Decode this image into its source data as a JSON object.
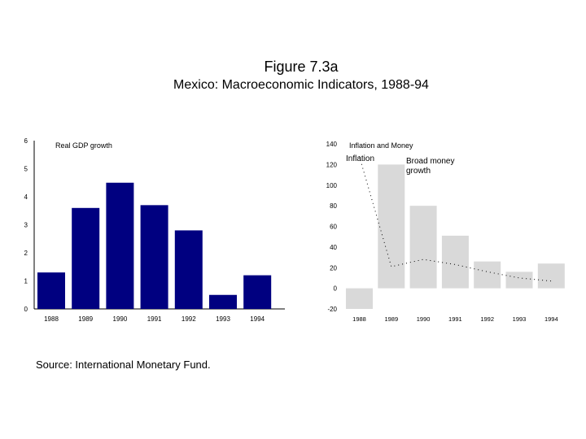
{
  "figure": {
    "title": "Figure 7.3a",
    "subtitle": "Mexico: Macroeconomic Indicators, 1988-94",
    "source": "Source: International Monetary Fund."
  },
  "colors": {
    "gdp_bar": "#000080",
    "money_bar": "#d9d9d9",
    "axis": "#000000"
  },
  "chart_data": [
    {
      "type": "bar",
      "title": "Real GDP growth",
      "categories": [
        "1988",
        "1989",
        "1990",
        "1991",
        "1992",
        "1993",
        "1994"
      ],
      "values": [
        1.3,
        3.6,
        4.5,
        3.7,
        2.8,
        0.5,
        1.2
      ],
      "ylim": [
        0,
        6
      ],
      "yticks": [
        "0",
        "1",
        "2",
        "3",
        "4",
        "5",
        "6"
      ]
    },
    {
      "type": "bar",
      "title": "Inflation and Money",
      "categories": [
        "1988",
        "1989",
        "1990",
        "1991",
        "1992",
        "1993",
        "1994"
      ],
      "ylim": [
        -20,
        140
      ],
      "yticks": [
        "-20",
        "0",
        "20",
        "40",
        "60",
        "80",
        "100",
        "120",
        "140"
      ],
      "series": [
        {
          "name": "Broad money growth",
          "kind": "bar",
          "values": [
            -20,
            120,
            80,
            51,
            26,
            16,
            24
          ]
        },
        {
          "name": "Inflation",
          "kind": "dotted-line",
          "values": [
            128,
            21,
            28,
            23,
            16,
            10,
            7
          ]
        }
      ]
    }
  ]
}
